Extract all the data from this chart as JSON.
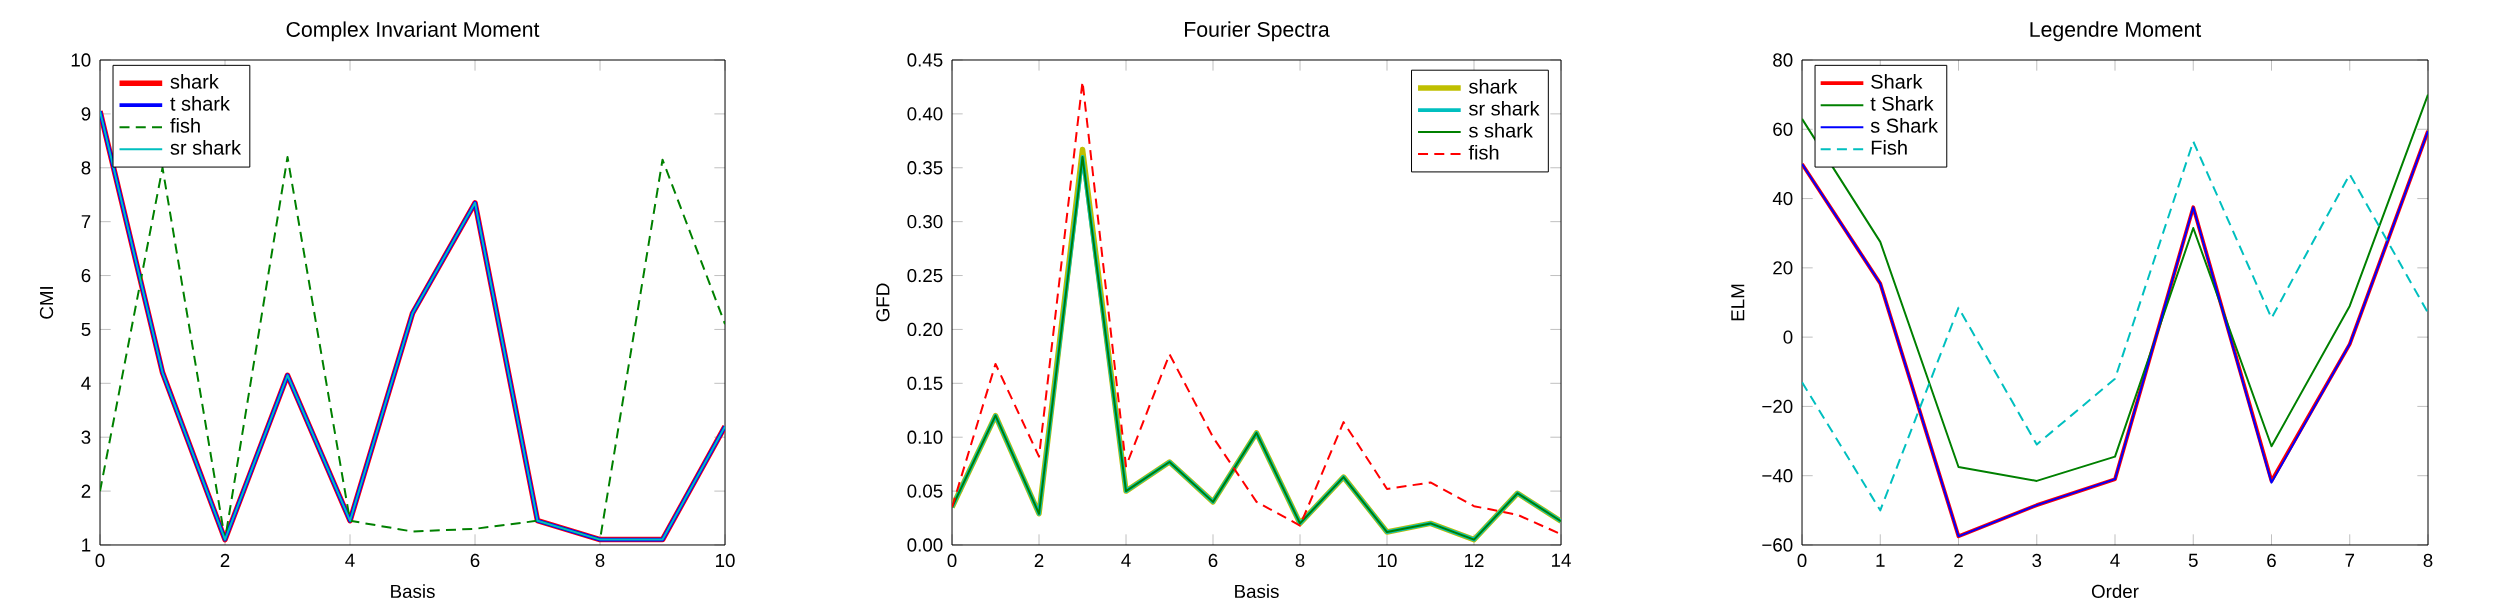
{
  "chart_data": [
    {
      "type": "line",
      "title": "Complex Invariant Moment",
      "xlabel": "Basis",
      "ylabel": "CMI",
      "legend": "top left",
      "marker": "none",
      "x": [
        0,
        1,
        2,
        3,
        4,
        5,
        6,
        7,
        8,
        9,
        10
      ],
      "xlim": [
        0,
        10
      ],
      "xticks": [
        0,
        2,
        4,
        6,
        8,
        10
      ],
      "ylim": [
        1,
        10
      ],
      "yticks": [
        1,
        2,
        3,
        4,
        5,
        6,
        7,
        8,
        9,
        10
      ],
      "series": [
        {
          "name": "shark",
          "color": "#ff0000",
          "line_style": "solid",
          "values": [
            9.05,
            4.2,
            1.1,
            4.15,
            1.45,
            5.3,
            7.35,
            1.45,
            1.1,
            1.1,
            3.2
          ]
        },
        {
          "name": "t shark",
          "color": "#0000ff",
          "line_style": "solid",
          "values": [
            9.05,
            4.2,
            1.1,
            4.15,
            1.45,
            5.3,
            7.35,
            1.45,
            1.1,
            1.1,
            3.2
          ]
        },
        {
          "name": "fish",
          "color": "#008000",
          "line_style": "dashed",
          "values": [
            2.0,
            8.0,
            1.1,
            8.2,
            1.45,
            1.25,
            1.3,
            1.45,
            1.1,
            8.15,
            5.1
          ]
        },
        {
          "name": "sr shark",
          "color": "#00bfbf",
          "line_style": "solid",
          "values": [
            9.05,
            4.2,
            1.1,
            4.15,
            1.45,
            5.3,
            7.35,
            1.45,
            1.1,
            1.1,
            3.2
          ]
        }
      ]
    },
    {
      "type": "line",
      "title": "Fourier Spectra",
      "xlabel": "Basis",
      "ylabel": "GFD",
      "legend": "top right",
      "marker": "none",
      "x": [
        0,
        1,
        2,
        3,
        4,
        5,
        6,
        7,
        8,
        9,
        10,
        11,
        12,
        13,
        14
      ],
      "xlim": [
        0,
        14
      ],
      "xticks": [
        0,
        2,
        4,
        6,
        8,
        10,
        12,
        14
      ],
      "ylim": [
        0,
        0.45
      ],
      "yticks": [
        {
          "value": 0,
          "label": "0.00"
        },
        {
          "value": 0.05,
          "label": "0.05"
        },
        {
          "value": 0.1,
          "label": "0.10"
        },
        {
          "value": 0.15,
          "label": "0.15"
        },
        {
          "value": 0.2,
          "label": "0.20"
        },
        {
          "value": 0.25,
          "label": "0.25"
        },
        {
          "value": 0.3,
          "label": "0.30"
        },
        {
          "value": 0.35,
          "label": "0.35"
        },
        {
          "value": 0.4,
          "label": "0.40"
        },
        {
          "value": 0.45,
          "label": "0.45"
        }
      ],
      "series": [
        {
          "name": "shark",
          "color": "#bfbf00",
          "line_style": "solid",
          "values": [
            0.035,
            0.12,
            0.029,
            0.367,
            0.05,
            0.077,
            0.04,
            0.104,
            0.02,
            0.063,
            0.012,
            0.02,
            0.005,
            0.048,
            0.022
          ]
        },
        {
          "name": "sr shark",
          "color": "#00bfbf",
          "line_style": "solid",
          "values": [
            0.035,
            0.12,
            0.029,
            0.36,
            0.05,
            0.077,
            0.04,
            0.104,
            0.02,
            0.063,
            0.012,
            0.02,
            0.005,
            0.048,
            0.022
          ]
        },
        {
          "name": "s shark",
          "color": "#008000",
          "line_style": "solid",
          "values": [
            0.035,
            0.12,
            0.029,
            0.36,
            0.05,
            0.077,
            0.04,
            0.104,
            0.02,
            0.063,
            0.012,
            0.02,
            0.005,
            0.048,
            0.022
          ]
        },
        {
          "name": "fish",
          "color": "#ff0000",
          "line_style": "dashed",
          "values": [
            0.035,
            0.168,
            0.082,
            0.43,
            0.073,
            0.177,
            0.1,
            0.04,
            0.018,
            0.114,
            0.052,
            0.058,
            0.036,
            0.028,
            0.01
          ]
        }
      ]
    },
    {
      "type": "line",
      "title": "Legendre Moment",
      "xlabel": "Order",
      "ylabel": "ELM",
      "legend": "top left",
      "marker": "none",
      "x": [
        0,
        1,
        2,
        3,
        4,
        5,
        6,
        7,
        8
      ],
      "xlim": [
        0,
        8
      ],
      "xticks": [
        0,
        1,
        2,
        3,
        4,
        5,
        6,
        7,
        8
      ],
      "ylim": [
        -60,
        80
      ],
      "yticks": [
        {
          "value": -60,
          "label": "−60"
        },
        {
          "value": -40,
          "label": "−40"
        },
        {
          "value": -20,
          "label": "−20"
        },
        0,
        20,
        40,
        60,
        80
      ],
      "series": [
        {
          "name": "Shark",
          "color": "#ff0000",
          "line_style": "solid",
          "values": [
            50,
            15.5,
            -57.5,
            -48.5,
            -41,
            37.5,
            -41.5,
            -2,
            59.5
          ]
        },
        {
          "name": "t Shark",
          "color": "#008000",
          "line_style": "solid",
          "values": [
            63,
            27.5,
            -37.5,
            -41.5,
            -34.5,
            31.5,
            -31.5,
            9,
            70
          ]
        },
        {
          "name": "s Shark",
          "color": "#0000ff",
          "line_style": "solid",
          "values": [
            50,
            15.5,
            -57.5,
            -48.5,
            -41,
            37.5,
            -42,
            -2,
            59.5
          ]
        },
        {
          "name": "Fish",
          "color": "#00bfbf",
          "line_style": "dashed",
          "values": [
            -13,
            -50,
            8.5,
            -31,
            -12,
            56.5,
            5.5,
            47,
            7
          ]
        }
      ]
    }
  ]
}
